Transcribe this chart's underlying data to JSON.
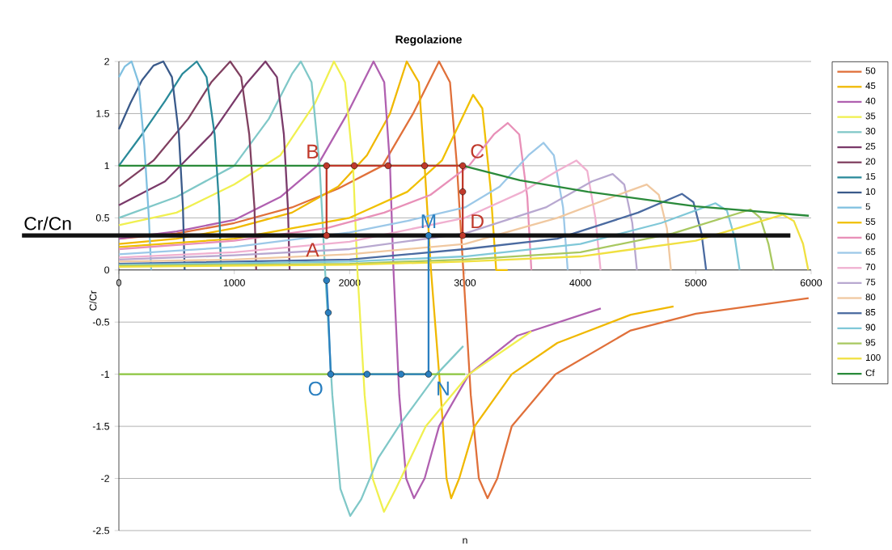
{
  "chart_data": {
    "type": "line",
    "title": "Regolazione",
    "xlabel": "n",
    "ylabel": "C/Cr",
    "xlim": [
      0,
      6000
    ],
    "xticks": [
      0,
      1000,
      2000,
      3000,
      4000,
      5000,
      6000
    ],
    "ylim": [
      -2.5,
      2
    ],
    "yticks": [
      -2.5,
      -2,
      -1.5,
      -1,
      -0.5,
      0,
      0.5,
      1,
      1.5,
      2
    ],
    "grid": "y",
    "legend": "right",
    "marker": "none",
    "ref_lines": [
      {
        "axis": "y",
        "value": 0.33,
        "label": "Cr/Cn",
        "color": "#111111"
      }
    ],
    "annotations": [
      {
        "text": "A",
        "x": 1800,
        "y": 0.33
      },
      {
        "text": "B",
        "x": 1800,
        "y": 1
      },
      {
        "text": "C",
        "x": 2980,
        "y": 1
      },
      {
        "text": "D",
        "x": 2980,
        "y": 0.33
      },
      {
        "text": "M",
        "x": 2684,
        "y": 0.33
      },
      {
        "text": "N",
        "x": 2684,
        "y": -1
      },
      {
        "text": "O",
        "x": 1836,
        "y": -1
      }
    ],
    "series": [
      {
        "name": "50",
        "color": "#e0703a",
        "x": [
          0,
          500,
          1000,
          1500,
          1900,
          2285,
          2550,
          2775,
          2870,
          2930,
          2985,
          3050,
          3120,
          3195,
          3280,
          3405,
          3784,
          4436,
          5000,
          5978
        ],
        "values": [
          0.3,
          0.35,
          0.45,
          0.6,
          0.78,
          1.0,
          1.5,
          2,
          1.8,
          1.0,
          0,
          -1.2,
          -2.0,
          -2.19,
          -2.0,
          -1.5,
          -1.0,
          -0.58,
          -0.42,
          -0.27
        ]
      },
      {
        "name": "45",
        "color": "#f0b800",
        "x": [
          0,
          500,
          1000,
          1500,
          1900,
          2150,
          2350,
          2495,
          2600,
          2650,
          2705,
          2790,
          2840,
          2880,
          2950,
          3083,
          3405,
          3800,
          4436,
          4807
        ],
        "values": [
          0.25,
          0.3,
          0.4,
          0.55,
          0.8,
          1.1,
          1.5,
          2,
          1.8,
          1.0,
          0,
          -1.2,
          -2.0,
          -2.19,
          -2.0,
          -1.5,
          -1.0,
          -0.7,
          -0.43,
          -0.35
        ]
      },
      {
        "name": "40",
        "color": "#b060b0",
        "x": [
          0,
          500,
          1000,
          1400,
          1720,
          1980,
          2207,
          2300,
          2350,
          2380,
          2430,
          2490,
          2558,
          2650,
          2775,
          3035,
          3455,
          4177
        ],
        "values": [
          0.3,
          0.37,
          0.48,
          0.7,
          1.0,
          1.5,
          2,
          1.8,
          1.0,
          0,
          -1.2,
          -2.0,
          -2.19,
          -2.0,
          -1.5,
          -1.0,
          -0.63,
          -0.37
        ]
      },
      {
        "name": "35",
        "color": "#f0f050",
        "x": [
          0,
          500,
          1000,
          1400,
          1700,
          1864,
          1960,
          2030,
          2067,
          2130,
          2200,
          2298,
          2400,
          2660,
          3035,
          3575
        ],
        "values": [
          0.43,
          0.55,
          0.82,
          1.1,
          1.6,
          2,
          1.8,
          1.0,
          0,
          -1.2,
          -2.0,
          -2.32,
          -2.1,
          -1.5,
          -1.0,
          -0.59
        ]
      },
      {
        "name": "30",
        "color": "#80c8c8",
        "x": [
          0,
          500,
          1000,
          1300,
          1500,
          1577,
          1670,
          1740,
          1787,
          1850,
          1920,
          2005,
          2100,
          2250,
          2450,
          2755,
          2985
        ],
        "values": [
          0.5,
          0.7,
          1.0,
          1.45,
          1.88,
          2,
          1.8,
          1.0,
          0,
          -1.2,
          -2.1,
          -2.36,
          -2.2,
          -1.8,
          -1.46,
          -1.0,
          -0.73
        ]
      },
      {
        "name": "25",
        "color": "#7a3a6a",
        "x": [
          0,
          400,
          800,
          1100,
          1270,
          1370,
          1430,
          1465,
          1480
        ],
        "values": [
          0.62,
          0.85,
          1.3,
          1.78,
          2,
          1.85,
          1.3,
          0.6,
          0
        ]
      },
      {
        "name": "20",
        "color": "#804060",
        "x": [
          0,
          300,
          600,
          800,
          965,
          1060,
          1130,
          1175,
          1190
        ],
        "values": [
          0.8,
          1.05,
          1.45,
          1.8,
          2,
          1.85,
          1.3,
          0.6,
          0
        ]
      },
      {
        "name": "15",
        "color": "#2a8a9a",
        "x": [
          0,
          200,
          400,
          550,
          675,
          760,
          830,
          870,
          885
        ],
        "values": [
          1.0,
          1.3,
          1.62,
          1.88,
          2,
          1.85,
          1.3,
          0.6,
          0
        ]
      },
      {
        "name": "10",
        "color": "#3a5a8a",
        "x": [
          0,
          100,
          200,
          300,
          385,
          460,
          520,
          555,
          570
        ],
        "values": [
          1.35,
          1.6,
          1.82,
          1.96,
          2,
          1.85,
          1.3,
          0.6,
          0
        ]
      },
      {
        "name": "5",
        "color": "#80c0e0",
        "x": [
          0,
          50,
          110,
          170,
          220,
          260,
          280
        ],
        "values": [
          1.85,
          1.95,
          2,
          1.8,
          1.2,
          0.5,
          0
        ]
      },
      {
        "name": "55",
        "color": "#f0c000",
        "x": [
          0,
          1000,
          2000,
          2500,
          2800,
          2950,
          3070,
          3150,
          3220,
          3270,
          3370
        ],
        "values": [
          0.22,
          0.3,
          0.5,
          0.75,
          1.05,
          1.4,
          1.68,
          1.55,
          0.8,
          0,
          0
        ]
      },
      {
        "name": "60",
        "color": "#e890b8",
        "x": [
          0,
          1000,
          1800,
          2300,
          2700,
          3035,
          3250,
          3370,
          3470,
          3540,
          3575
        ],
        "values": [
          0.2,
          0.28,
          0.4,
          0.55,
          0.72,
          1.0,
          1.3,
          1.41,
          1.3,
          0.7,
          0
        ]
      },
      {
        "name": "65",
        "color": "#9cc8e8",
        "x": [
          0,
          1000,
          2000,
          2500,
          3000,
          3300,
          3550,
          3680,
          3770,
          3850,
          3890
        ],
        "values": [
          0.15,
          0.22,
          0.36,
          0.47,
          0.6,
          0.8,
          1.1,
          1.22,
          1.1,
          0.6,
          0
        ]
      },
      {
        "name": "70",
        "color": "#f0b0d0",
        "x": [
          0,
          1000,
          2000,
          3000,
          3500,
          3800,
          3965,
          4060,
          4130,
          4175
        ],
        "values": [
          0.12,
          0.17,
          0.27,
          0.5,
          0.75,
          0.95,
          1.05,
          0.95,
          0.5,
          0
        ]
      },
      {
        "name": "75",
        "color": "#b8a8d0",
        "x": [
          0,
          1000,
          2000,
          3000,
          3700,
          4100,
          4280,
          4380,
          4450,
          4490
        ],
        "values": [
          0.1,
          0.14,
          0.2,
          0.35,
          0.6,
          0.85,
          0.92,
          0.82,
          0.45,
          0
        ]
      },
      {
        "name": "80",
        "color": "#f0c8a0",
        "x": [
          0,
          1000,
          2000,
          3000,
          3800,
          4400,
          4575,
          4680,
          4750,
          4785
        ],
        "values": [
          0.08,
          0.1,
          0.15,
          0.25,
          0.5,
          0.75,
          0.82,
          0.72,
          0.4,
          0
        ]
      },
      {
        "name": "85",
        "color": "#4a6aa0",
        "x": [
          0,
          2000,
          3000,
          3800,
          4500,
          4880,
          4980,
          5050,
          5090
        ],
        "values": [
          0.06,
          0.1,
          0.2,
          0.3,
          0.55,
          0.73,
          0.65,
          0.35,
          0
        ]
      },
      {
        "name": "90",
        "color": "#80c8d8",
        "x": [
          0,
          2000,
          3000,
          4000,
          4700,
          5170,
          5270,
          5340,
          5380
        ],
        "values": [
          0.05,
          0.08,
          0.13,
          0.25,
          0.45,
          0.64,
          0.57,
          0.3,
          0
        ]
      },
      {
        "name": "95",
        "color": "#a8c860",
        "x": [
          0,
          2000,
          3000,
          4000,
          4800,
          5475,
          5560,
          5630,
          5675
        ],
        "values": [
          0.04,
          0.06,
          0.1,
          0.17,
          0.35,
          0.58,
          0.5,
          0.25,
          0
        ]
      },
      {
        "name": "100",
        "color": "#f0e040",
        "x": [
          0,
          2000,
          3000,
          4000,
          5000,
          5755,
          5850,
          5930,
          5975
        ],
        "values": [
          0.03,
          0.05,
          0.08,
          0.13,
          0.28,
          0.53,
          0.47,
          0.25,
          0
        ]
      },
      {
        "name": "Cf",
        "color": "#2a8a3a",
        "x": [
          0,
          2980,
          3475,
          4065,
          5000,
          5980
        ],
        "values": [
          1,
          1,
          0.86,
          0.75,
          0.61,
          0.52
        ]
      },
      {
        "color": "#8cc63f",
        "x": [
          0,
          3000
        ],
        "values": [
          -1,
          -1
        ]
      },
      {
        "color": "#c0392b",
        "marker": "circle",
        "x": [
          1800,
          1800,
          2040,
          2333,
          2650,
          2980,
          2980,
          2980
        ],
        "values": [
          0.33,
          1,
          1,
          1,
          1,
          1,
          0.75,
          0.33
        ]
      },
      {
        "color": "#2a7fc0",
        "marker": "circle",
        "x": [
          2684,
          2684,
          2446,
          2151,
          1836,
          1815,
          1800
        ],
        "values": [
          0.33,
          -1,
          -1,
          -1,
          -1,
          -0.41,
          -0.1
        ]
      }
    ]
  }
}
